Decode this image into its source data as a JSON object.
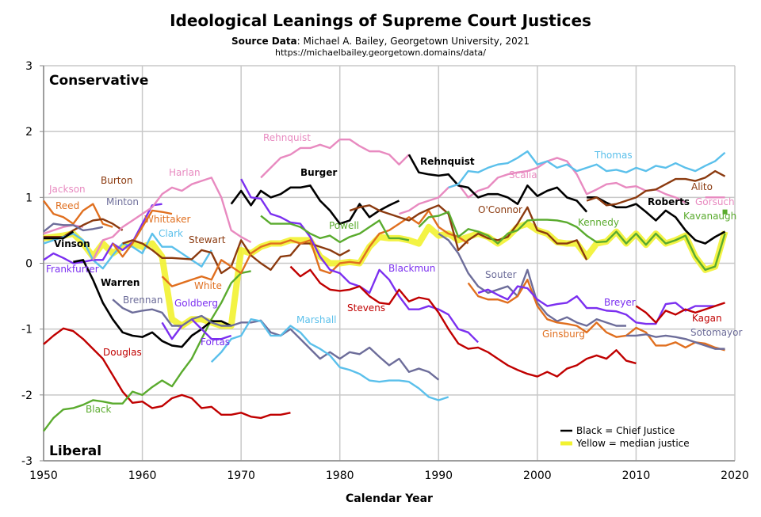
{
  "chart_data": {
    "type": "line",
    "title": "Ideological Leanings of Supreme Court Justices",
    "subtitle_label": "Source Data",
    "subtitle_value": ": Michael A. Bailey, Georgetown University, 2021",
    "url": "https://michaelbailey.georgetown.domains/data/",
    "xlabel": "Calendar Year",
    "xlim": [
      1950,
      2020
    ],
    "ylim": [
      -3,
      3
    ],
    "xticks": [
      "1950",
      "1960",
      "1970",
      "1980",
      "1990",
      "2000",
      "2010",
      "2020"
    ],
    "yticks": [
      "3",
      "2",
      "1",
      "0",
      "-1",
      "-2",
      "-3"
    ],
    "top_annotation": "Conservative",
    "bottom_annotation": "Liberal",
    "grid": true,
    "legend": {
      "placement": "bottom-right",
      "entries": [
        "Black = Chief Justice",
        "Yellow = median justice"
      ],
      "colors": [
        "#000000",
        "#f2f230"
      ]
    },
    "median": {
      "color": "#f2f230",
      "start": 1950,
      "values": [
        0.38,
        0.4,
        0.42,
        0.45,
        0.3,
        0.1,
        0.3,
        0.15,
        0.25,
        0.3,
        0.25,
        0.3,
        0.1,
        -0.85,
        -0.95,
        -0.85,
        -0.85,
        -0.9,
        -0.95,
        -0.95,
        0.2,
        0.15,
        0.25,
        0.3,
        0.3,
        0.35,
        0.35,
        0.35,
        0.1,
        0.0,
        0.0,
        0.02,
        0.0,
        0.25,
        0.4,
        0.38,
        0.38,
        0.35,
        0.3,
        0.55,
        0.42,
        0.45,
        0.35,
        0.4,
        0.45,
        0.4,
        0.3,
        0.4,
        0.55,
        0.6,
        0.5,
        0.45,
        0.32,
        0.3,
        0.3,
        0.1,
        0.3,
        0.33,
        0.48,
        0.3,
        0.45,
        0.28,
        0.45,
        0.3,
        0.35,
        0.42,
        0.1,
        -0.1,
        -0.05,
        0.48
      ]
    },
    "series": [
      {
        "name": "Douglas",
        "color": "#c00000",
        "start": 1950,
        "values": [
          -1.23,
          -1.1,
          -0.99,
          -1.03,
          -1.15,
          -1.3,
          -1.45,
          -1.7,
          -1.95,
          -2.12,
          -2.1,
          -2.2,
          -2.17,
          -2.05,
          -2.0,
          -2.05,
          -2.2,
          -2.18,
          -2.3,
          -2.3,
          -2.27,
          -2.33,
          -2.35,
          -2.3,
          -2.3,
          -2.27
        ]
      },
      {
        "name": "Black",
        "color": "#5aab2e",
        "start": 1950,
        "values": [
          -2.55,
          -2.35,
          -2.22,
          -2.2,
          -2.15,
          -2.08,
          -2.1,
          -2.13,
          -2.13,
          -1.95,
          -2.0,
          -1.88,
          -1.78,
          -1.87,
          -1.65,
          -1.45,
          -1.15,
          -0.85,
          -0.6,
          -0.3,
          -0.15,
          -0.12
        ]
      },
      {
        "name": "Jackson",
        "color": "#e88ac0",
        "start": 1950,
        "values": [
          0.45,
          0.5,
          0.55,
          0.58,
          0.55
        ]
      },
      {
        "name": "Reed",
        "color": "#e06f1f",
        "start": 1950,
        "values": [
          0.95,
          0.75,
          0.7,
          0.6,
          0.8,
          0.9,
          0.6,
          0.55
        ]
      },
      {
        "name": "Burton",
        "color": "#8b3a0f",
        "start": 1950,
        "values": [
          0.4,
          0.4,
          0.4,
          0.5,
          0.58,
          0.65,
          0.67,
          0.6,
          0.5
        ]
      },
      {
        "name": "Minton",
        "color": "#6d6d9a",
        "start": 1950,
        "values": [
          0.48,
          0.6,
          0.58,
          0.58,
          0.5,
          0.52,
          0.55
        ]
      },
      {
        "name": "Clark",
        "color": "#5bc0eb",
        "start": 1950,
        "values": [
          0.3,
          0.35,
          0.4,
          0.45,
          0.35,
          0.05,
          -0.08,
          0.12,
          0.3,
          0.25,
          0.15,
          0.45,
          0.25,
          0.25,
          0.15,
          0.05,
          -0.05,
          0.2
        ]
      },
      {
        "name": "Frankfurter",
        "color": "#7b2ff0",
        "start": 1950,
        "values": [
          0.05,
          0.15,
          0.08,
          0.0,
          0.02,
          0.05,
          0.05,
          0.3,
          0.2,
          0.32,
          0.6,
          0.88,
          0.9
        ]
      },
      {
        "name": "Vinson",
        "color": "#000000",
        "chief": true,
        "start": 1950,
        "values": [
          0.38,
          0.38,
          0.38,
          0.48
        ]
      },
      {
        "name": "Warren",
        "color": "#000000",
        "chief": true,
        "start": 1953,
        "values": [
          0.02,
          0.05,
          -0.25,
          -0.6,
          -0.85,
          -1.05,
          -1.1,
          -1.12,
          -1.05,
          -1.18,
          -1.25,
          -1.27,
          -1.1,
          -1.0,
          -0.88,
          -0.88,
          -0.95
        ]
      },
      {
        "name": "Harlan",
        "color": "#e88ac0",
        "start": 1955,
        "values": [
          0.05,
          0.35,
          0.4,
          0.55,
          0.65,
          0.75,
          0.85,
          1.05,
          1.15,
          1.1,
          1.2,
          1.25,
          1.3,
          1.0,
          0.5,
          0.4,
          0.32
        ]
      },
      {
        "name": "Whittaker",
        "color": "#e06f1f",
        "start": 1957,
        "values": [
          0.3,
          0.1,
          0.3,
          0.55,
          0.8,
          0.78,
          0.75
        ]
      },
      {
        "name": "Brennan",
        "color": "#6d6d9a",
        "start": 1957,
        "values": [
          -0.55,
          -0.68,
          -0.75,
          -0.72,
          -0.7,
          -0.75,
          -0.95,
          -0.95,
          -0.85,
          -0.8,
          -0.9,
          -0.95,
          -0.95,
          -0.9,
          -0.9,
          -0.87,
          -1.05,
          -1.1,
          -1.0,
          -1.15,
          -1.3,
          -1.45,
          -1.35,
          -1.45,
          -1.35,
          -1.38,
          -1.28,
          -1.42,
          -1.55,
          -1.45,
          -1.65,
          -1.6,
          -1.65,
          -1.77
        ]
      },
      {
        "name": "Stewart",
        "color": "#8b3a0f",
        "start": 1958,
        "values": [
          0.3,
          0.35,
          0.3,
          0.2,
          0.08,
          0.08,
          0.07,
          0.06,
          0.2,
          0.16,
          -0.15,
          -0.05,
          0.35,
          0.12,
          0.0,
          -0.1,
          0.1,
          0.12,
          0.3,
          0.3,
          0.25,
          0.2,
          0.12,
          0.2
        ]
      },
      {
        "name": "White",
        "color": "#e06f1f",
        "start": 1962,
        "values": [
          -0.2,
          -0.35,
          -0.3,
          -0.25,
          -0.2,
          -0.25,
          0.05,
          -0.05,
          -0.15,
          0.15,
          0.25,
          0.3,
          0.3,
          0.35,
          0.3,
          0.35,
          -0.1,
          -0.15,
          0.0,
          0.02,
          0.0,
          0.25,
          0.45,
          0.5,
          0.6,
          0.7,
          0.6,
          0.8,
          0.55,
          0.45,
          0.4,
          0.3
        ]
      },
      {
        "name": "Goldberg",
        "color": "#7b2ff0",
        "start": 1962,
        "values": [
          -0.9,
          -1.15,
          -0.95
        ]
      },
      {
        "name": "Fortas",
        "color": "#7b2ff0",
        "start": 1965,
        "values": [
          -0.85,
          -1.0,
          -1.15,
          -1.15,
          -1.1
        ]
      },
      {
        "name": "Marshall",
        "color": "#5bc0eb",
        "start": 1967,
        "values": [
          -1.5,
          -1.35,
          -1.15,
          -1.1,
          -0.85,
          -0.88,
          -1.1,
          -1.1,
          -0.95,
          -1.05,
          -1.22,
          -1.3,
          -1.4,
          -1.58,
          -1.62,
          -1.68,
          -1.78,
          -1.8,
          -1.78,
          -1.78,
          -1.8,
          -1.9,
          -2.03,
          -2.08,
          -2.03
        ]
      },
      {
        "name": "Burger",
        "color": "#000000",
        "chief": true,
        "start": 1969,
        "values": [
          0.9,
          1.1,
          0.88,
          1.1,
          1.0,
          1.05,
          1.15,
          1.15,
          1.18,
          0.95,
          0.8,
          0.6,
          0.65,
          0.9,
          0.7,
          0.8,
          0.88,
          0.95
        ]
      },
      {
        "name": "Blackmun",
        "color": "#7b2ff0",
        "start": 1970,
        "values": [
          1.28,
          1.0,
          0.98,
          0.75,
          0.7,
          0.62,
          0.6,
          0.4,
          0.1,
          -0.1,
          -0.15,
          -0.3,
          -0.35,
          -0.45,
          -0.1,
          -0.25,
          -0.5,
          -0.7,
          -0.7,
          -0.65,
          -0.7,
          -0.78,
          -1.0,
          -1.05,
          -1.2
        ]
      },
      {
        "name": "Rehnquist",
        "color": "#e88ac0",
        "start": 1972,
        "values": [
          1.3,
          1.45,
          1.6,
          1.65,
          1.75,
          1.75,
          1.8,
          1.75,
          1.88,
          1.88,
          1.78,
          1.7,
          1.7,
          1.65,
          1.5,
          1.65
        ]
      },
      {
        "name": "Powell",
        "color": "#5aab2e",
        "start": 1972,
        "values": [
          0.72,
          0.6,
          0.6,
          0.6,
          0.55,
          0.45,
          0.38,
          0.42,
          0.32,
          0.4,
          0.45,
          0.55,
          0.65,
          0.38,
          0.38,
          0.35
        ]
      },
      {
        "name": "Stevens",
        "color": "#c00000",
        "start": 1975,
        "values": [
          -0.05,
          -0.2,
          -0.1,
          -0.3,
          -0.4,
          -0.42,
          -0.4,
          -0.35,
          -0.5,
          -0.6,
          -0.62,
          -0.4,
          -0.58,
          -0.52,
          -0.55,
          -0.75,
          -1.0,
          -1.22,
          -1.3,
          -1.28,
          -1.35,
          -1.45,
          -1.55,
          -1.62,
          -1.68,
          -1.72,
          -1.65,
          -1.72,
          -1.6,
          -1.55,
          -1.45,
          -1.4,
          -1.45,
          -1.32,
          -1.48,
          -1.52
        ]
      },
      {
        "name": "O'Connor",
        "color": "#8b3a0f",
        "start": 1981,
        "values": [
          0.8,
          0.85,
          0.88,
          0.8,
          0.75,
          0.7,
          0.65,
          0.75,
          0.82,
          0.88,
          0.75,
          0.2,
          0.35,
          0.45,
          0.38,
          0.35,
          0.4,
          0.6,
          0.85,
          0.5,
          0.45,
          0.3,
          0.3,
          0.35,
          0.05
        ]
      },
      {
        "name": "Scalia",
        "color": "#e88ac0",
        "start": 1986,
        "values": [
          0.75,
          0.8,
          0.9,
          0.95,
          1.0,
          1.15,
          1.2,
          1.0,
          1.1,
          1.15,
          1.3,
          1.35,
          1.38,
          1.4,
          1.45,
          1.55,
          1.6,
          1.55,
          1.35,
          1.05,
          1.12,
          1.2,
          1.22,
          1.15,
          1.17,
          1.1,
          1.12,
          1.05,
          1.0,
          0.92
        ]
      },
      {
        "name": "Rehnquist",
        "color": "#000000",
        "chief": true,
        "start": 1987,
        "values": [
          1.65,
          1.38,
          1.35,
          1.33,
          1.35,
          1.18,
          1.15,
          1.0,
          1.05,
          1.05,
          1.0,
          0.9,
          1.18,
          1.02,
          1.1,
          1.15,
          1.0,
          0.95,
          0.78
        ]
      },
      {
        "name": "Kennedy",
        "color": "#5aab2e",
        "start": 1988,
        "values": [
          0.55,
          0.7,
          0.72,
          0.78,
          0.4,
          0.52,
          0.48,
          0.42,
          0.3,
          0.45,
          0.5,
          0.65,
          0.66,
          0.66,
          0.65,
          0.62,
          0.55,
          0.42,
          0.32,
          0.33,
          0.48,
          0.3,
          0.45,
          0.28,
          0.45,
          0.3,
          0.35,
          0.42,
          0.1,
          -0.1,
          -0.05,
          0.45
        ]
      },
      {
        "name": "Souter",
        "color": "#6d6d9a",
        "start": 1990,
        "values": [
          0.45,
          0.35,
          0.15,
          -0.15,
          -0.35,
          -0.45,
          -0.4,
          -0.35,
          -0.5,
          -0.1,
          -0.6,
          -0.78,
          -0.88,
          -0.82,
          -0.9,
          -0.95,
          -0.85,
          -0.9,
          -0.95,
          -0.95
        ]
      },
      {
        "name": "Thomas",
        "color": "#5bc0eb",
        "start": 1991,
        "values": [
          1.15,
          1.2,
          1.4,
          1.38,
          1.45,
          1.5,
          1.52,
          1.6,
          1.7,
          1.5,
          1.55,
          1.45,
          1.5,
          1.4,
          1.45,
          1.5,
          1.4,
          1.42,
          1.38,
          1.45,
          1.4,
          1.48,
          1.45,
          1.52,
          1.45,
          1.4,
          1.48,
          1.55,
          1.68
        ]
      },
      {
        "name": "Ginsburg",
        "color": "#e06f1f",
        "start": 1993,
        "values": [
          -0.3,
          -0.5,
          -0.55,
          -0.55,
          -0.6,
          -0.5,
          -0.25,
          -0.65,
          -0.85,
          -0.9,
          -0.92,
          -0.95,
          -1.05,
          -0.9,
          -1.05,
          -1.12,
          -1.1,
          -0.98,
          -1.05,
          -1.25,
          -1.25,
          -1.2,
          -1.28,
          -1.2,
          -1.22,
          -1.28,
          -1.32
        ]
      },
      {
        "name": "Breyer",
        "color": "#7b2ff0",
        "start": 1994,
        "values": [
          -0.45,
          -0.4,
          -0.48,
          -0.55,
          -0.35,
          -0.38,
          -0.55,
          -0.65,
          -0.62,
          -0.6,
          -0.5,
          -0.68,
          -0.68,
          -0.72,
          -0.73,
          -0.78,
          -0.9,
          -0.92,
          -0.92,
          -0.62,
          -0.6,
          -0.72,
          -0.65,
          -0.65,
          -0.65
        ]
      },
      {
        "name": "Roberts",
        "color": "#000000",
        "chief": true,
        "start": 2005,
        "values": [
          1.0,
          1.0,
          0.92,
          0.85,
          0.85,
          0.9,
          0.78,
          0.65,
          0.8,
          0.7,
          0.5,
          0.35,
          0.3,
          0.4,
          0.48
        ]
      },
      {
        "name": "Alito",
        "color": "#8b3a0f",
        "start": 2005,
        "values": [
          0.95,
          1.0,
          0.88,
          0.9,
          0.95,
          1.0,
          1.1,
          1.12,
          1.2,
          1.28,
          1.28,
          1.25,
          1.3,
          1.4,
          1.32
        ]
      },
      {
        "name": "Sotomayor",
        "color": "#6d6d9a",
        "start": 2009,
        "values": [
          -1.1,
          -1.1,
          -1.08,
          -1.12,
          -1.1,
          -1.12,
          -1.15,
          -1.2,
          -1.25,
          -1.3,
          -1.3
        ]
      },
      {
        "name": "Kagan",
        "color": "#c00000",
        "start": 2010,
        "values": [
          -0.65,
          -0.75,
          -0.9,
          -0.72,
          -0.78,
          -0.7,
          -0.75,
          -0.7,
          -0.65,
          -0.6
        ]
      },
      {
        "name": "Gorsuch",
        "color": "#e88ac0",
        "start": 2017,
        "values": [
          1.0,
          1.0,
          1.0
        ]
      },
      {
        "name": "Kavanaugh",
        "color": "#5aab2e",
        "start": 2019,
        "values": [
          0.78
        ]
      }
    ]
  }
}
